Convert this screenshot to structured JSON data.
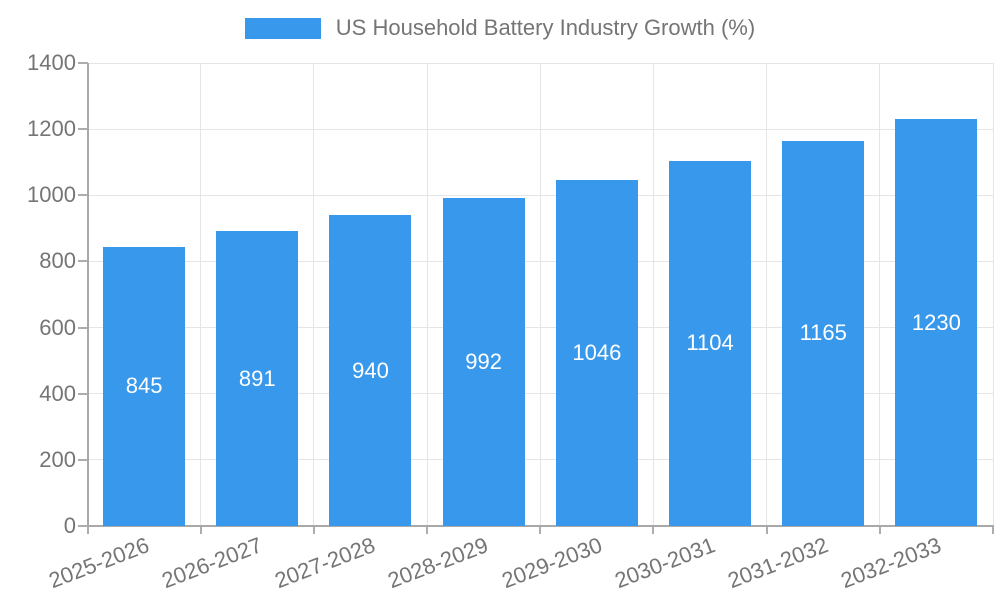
{
  "chart_data": {
    "type": "bar",
    "title": "US Household Battery Industry Growth (%)",
    "legend": {
      "label": "US Household Battery Industry Growth (%)",
      "position": "top"
    },
    "categories": [
      "2025-2026",
      "2026-2027",
      "2027-2028",
      "2028-2029",
      "2029-2030",
      "2030-2031",
      "2031-2032",
      "2032-2033"
    ],
    "values": [
      845,
      891,
      940,
      992,
      1046,
      1104,
      1165,
      1230
    ],
    "xlabel": "",
    "ylabel": "",
    "ylim": [
      0,
      1400
    ],
    "yticks": [
      0,
      200,
      400,
      600,
      800,
      1000,
      1200,
      1400
    ],
    "grid": true,
    "x_label_rotation_deg": -21,
    "colors": {
      "bar": "#3899ec",
      "bar_value_label": "#ffffff",
      "axis_text": "#757575",
      "gridline": "#e5e5e5",
      "axis_line": "#a9a9a9",
      "tick_mark": "#adadad",
      "background": "#ffffff"
    }
  }
}
